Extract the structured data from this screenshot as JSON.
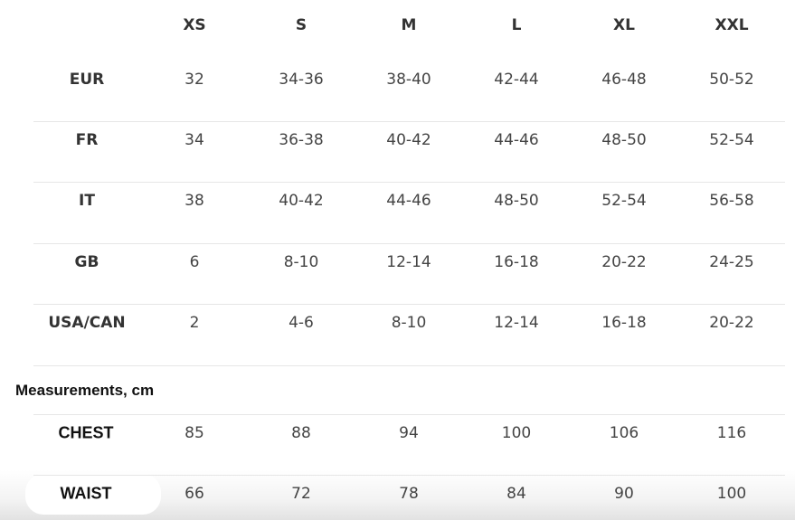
{
  "sizes": [
    "XS",
    "S",
    "M",
    "L",
    "XL",
    "XXL"
  ],
  "size_rows": [
    {
      "label": "EUR",
      "values": [
        "32",
        "34-36",
        "38-40",
        "42-44",
        "46-48",
        "50-52"
      ]
    },
    {
      "label": "FR",
      "values": [
        "34",
        "36-38",
        "40-42",
        "44-46",
        "48-50",
        "52-54"
      ]
    },
    {
      "label": "IT",
      "values": [
        "38",
        "40-42",
        "44-46",
        "48-50",
        "52-54",
        "56-58"
      ]
    },
    {
      "label": "GB",
      "values": [
        "6",
        "8-10",
        "12-14",
        "16-18",
        "20-22",
        "24-25"
      ]
    },
    {
      "label": "USA/CAN",
      "values": [
        "2",
        "4-6",
        "8-10",
        "12-14",
        "16-18",
        "20-22"
      ]
    }
  ],
  "measurements_title": "Measurements, cm",
  "measurement_rows": [
    {
      "label": "CHEST",
      "values": [
        "85",
        "88",
        "94",
        "100",
        "106",
        "116"
      ]
    },
    {
      "label": "WAIST",
      "values": [
        "66",
        "72",
        "78",
        "84",
        "90",
        "100"
      ]
    }
  ]
}
